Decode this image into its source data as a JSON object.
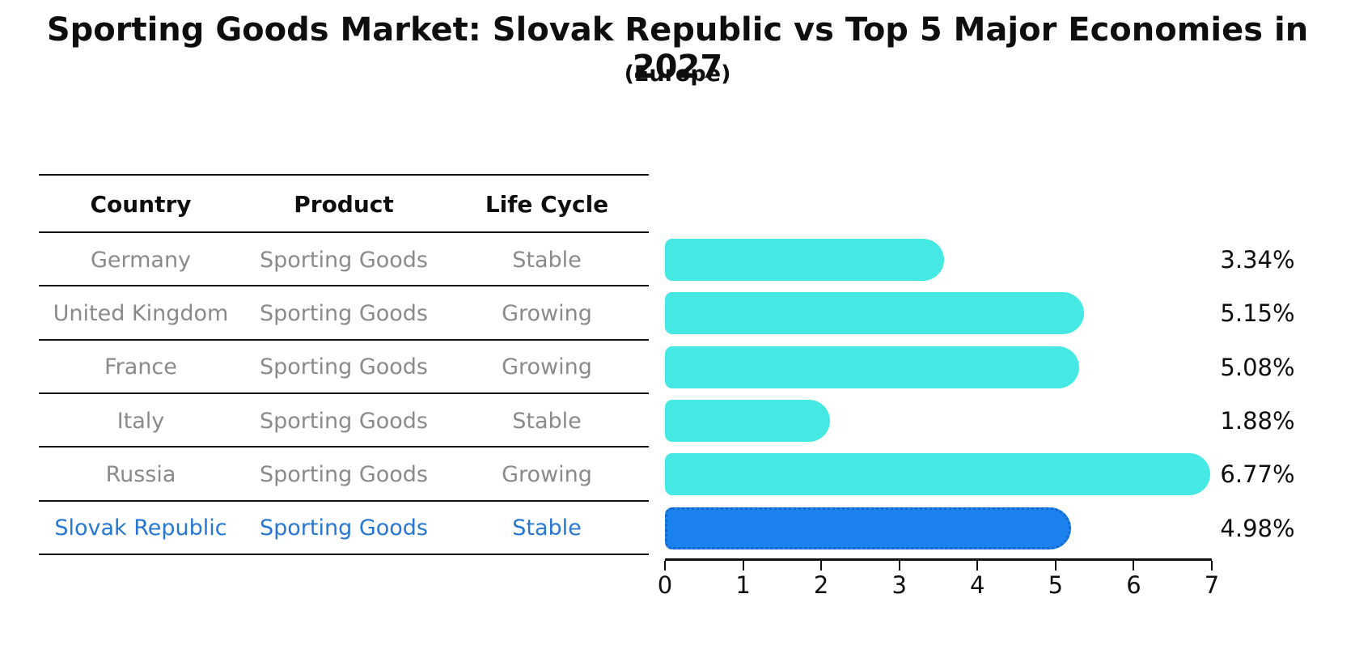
{
  "title": "Sporting Goods Market: Slovak Republic vs Top 5 Major Economies in 2027",
  "subtitle": "(Europe)",
  "table": {
    "headers": [
      "Country",
      "Product",
      "Life Cycle"
    ],
    "rows": [
      {
        "country": "Germany",
        "product": "Sporting Goods",
        "life_cycle": "Stable",
        "highlight": false
      },
      {
        "country": "United Kingdom",
        "product": "Sporting Goods",
        "life_cycle": "Growing",
        "highlight": false
      },
      {
        "country": "France",
        "product": "Sporting Goods",
        "life_cycle": "Growing",
        "highlight": false
      },
      {
        "country": "Italy",
        "product": "Sporting Goods",
        "life_cycle": "Stable",
        "highlight": false
      },
      {
        "country": "Russia",
        "product": "Sporting Goods",
        "life_cycle": "Growing",
        "highlight": false
      },
      {
        "country": "Slovak Republic",
        "product": "Sporting Goods",
        "life_cycle": "Stable",
        "highlight": true
      }
    ]
  },
  "chart_data": {
    "type": "bar",
    "orientation": "horizontal",
    "title": "Sporting Goods Market: Slovak Republic vs Top 5 Major Economies in 2027",
    "subtitle": "(Europe)",
    "categories": [
      "Germany",
      "United Kingdom",
      "France",
      "Italy",
      "Russia",
      "Slovak Republic"
    ],
    "values": [
      3.34,
      5.15,
      5.08,
      1.88,
      6.77,
      4.98
    ],
    "value_labels": [
      "3.34%",
      "5.15%",
      "5.08%",
      "1.88%",
      "6.77%",
      "4.98%"
    ],
    "xlabel": "",
    "ylabel": "",
    "xlim": [
      0,
      7
    ],
    "x_ticks": [
      "0",
      "1",
      "2",
      "3",
      "4",
      "5",
      "6",
      "7"
    ],
    "grid": false,
    "legend": false,
    "highlight_category": "Slovak Republic",
    "colors": {
      "bar": "#45e8e2",
      "highlight_bar": "#1b82f0",
      "highlight_bar_border": "#1467c8",
      "table_text": "#8a8a8a",
      "highlight_text": "#2677d2",
      "axis_text": "#0e0e0e"
    }
  }
}
